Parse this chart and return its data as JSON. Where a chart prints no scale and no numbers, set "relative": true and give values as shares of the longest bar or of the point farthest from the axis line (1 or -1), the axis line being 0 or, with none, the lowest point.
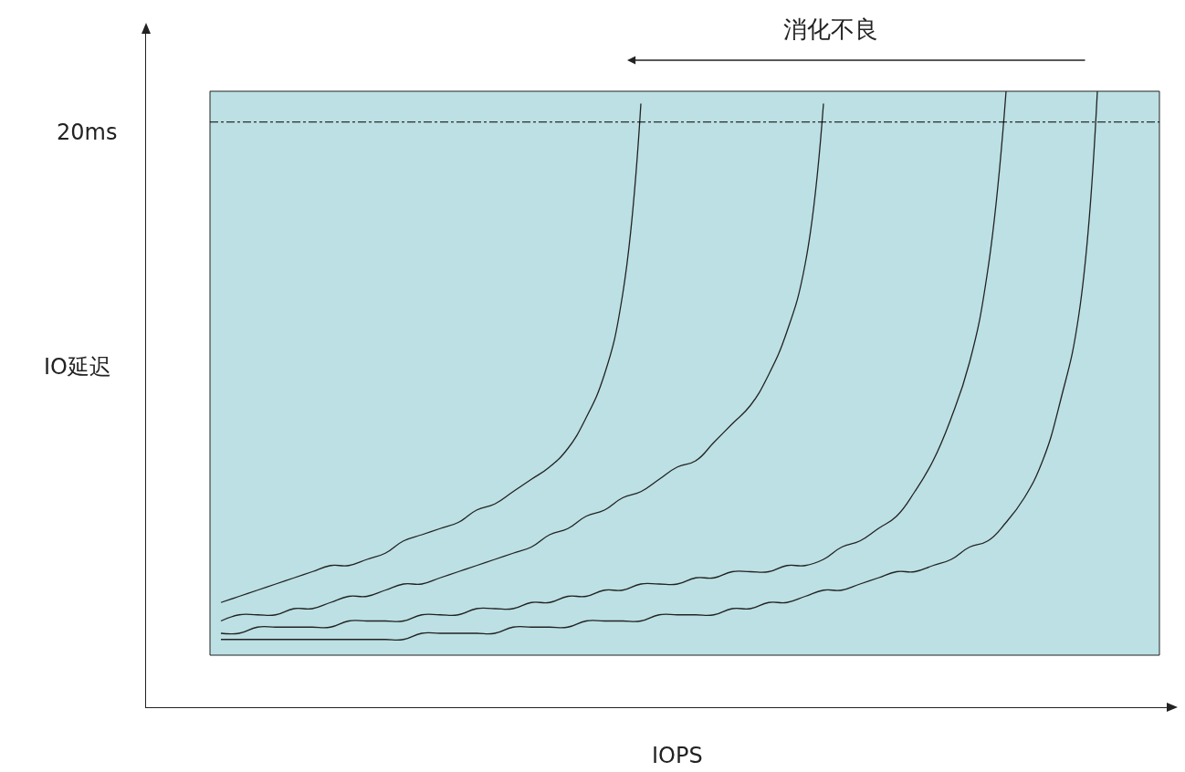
{
  "chart_data": {
    "type": "line",
    "relative": true,
    "xlabel": "IOPS",
    "ylabel": "IO延迟",
    "grid": false,
    "marker": "none",
    "line_style": "solid",
    "annotations": [
      "消化不良"
    ],
    "ref_lines": [
      {
        "axis": "y",
        "value": 0.95,
        "label": "20ms",
        "color": "#000000",
        "line_style": "dashed"
      }
    ],
    "categories": [
      null,
      null,
      null,
      null,
      null,
      null,
      null,
      null,
      null,
      null,
      null,
      null,
      null,
      null,
      null,
      null,
      null,
      null,
      null,
      null,
      null,
      null,
      null,
      null,
      null,
      null,
      null,
      null,
      null,
      null,
      null,
      null,
      null,
      null,
      null,
      null,
      null,
      null,
      null,
      null,
      null,
      null,
      null,
      null,
      null,
      null,
      null,
      null,
      null
    ],
    "series": [
      {
        "color": "#222222",
        "values": [
          0.17,
          0.18,
          0.19,
          0.2,
          0.21,
          0.22,
          0.23,
          0.23,
          0.24,
          0.25,
          0.27,
          0.28,
          0.29,
          0.3,
          0.32,
          0.33,
          0.35,
          0.37,
          0.39,
          0.42,
          0.47,
          0.54,
          0.67,
          0.98,
          null,
          null,
          null,
          null,
          null,
          null,
          null,
          null,
          null,
          null,
          null,
          null,
          null,
          null,
          null,
          null,
          null,
          null,
          null,
          null,
          null,
          null,
          null,
          null,
          null
        ]
      },
      {
        "color": "#222222",
        "values": [
          0.14,
          0.15,
          0.15,
          0.15,
          0.16,
          0.16,
          0.17,
          0.18,
          0.18,
          0.19,
          0.2,
          0.2,
          0.21,
          0.22,
          0.23,
          0.24,
          0.25,
          0.26,
          0.28,
          0.29,
          0.31,
          0.32,
          0.34,
          0.35,
          0.37,
          0.39,
          0.4,
          0.43,
          0.46,
          0.49,
          0.54,
          0.61,
          0.72,
          0.98,
          null,
          null,
          null,
          null,
          null,
          null,
          null,
          null,
          null,
          null,
          null,
          null,
          null,
          null,
          null
        ]
      },
      {
        "color": "#222222",
        "values": [
          0.12,
          0.12,
          0.13,
          0.13,
          0.13,
          0.13,
          0.13,
          0.14,
          0.14,
          0.14,
          0.14,
          0.15,
          0.15,
          0.15,
          0.16,
          0.16,
          0.16,
          0.17,
          0.17,
          0.18,
          0.18,
          0.19,
          0.19,
          0.2,
          0.2,
          0.2,
          0.21,
          0.21,
          0.22,
          0.22,
          0.22,
          0.23,
          0.23,
          0.24,
          0.26,
          0.27,
          0.29,
          0.31,
          0.35,
          0.4,
          0.47,
          0.56,
          0.71,
          1.0,
          null,
          null,
          null,
          null,
          null
        ]
      },
      {
        "color": "#222222",
        "values": [
          0.11,
          0.11,
          0.11,
          0.11,
          0.11,
          0.11,
          0.11,
          0.11,
          0.11,
          0.11,
          0.11,
          0.12,
          0.12,
          0.12,
          0.12,
          0.12,
          0.13,
          0.13,
          0.13,
          0.13,
          0.14,
          0.14,
          0.14,
          0.14,
          0.15,
          0.15,
          0.15,
          0.15,
          0.16,
          0.16,
          0.17,
          0.17,
          0.18,
          0.19,
          0.19,
          0.2,
          0.21,
          0.22,
          0.22,
          0.23,
          0.24,
          0.26,
          0.27,
          0.3,
          0.34,
          0.4,
          0.5,
          0.64,
          1.0
        ]
      }
    ]
  }
}
